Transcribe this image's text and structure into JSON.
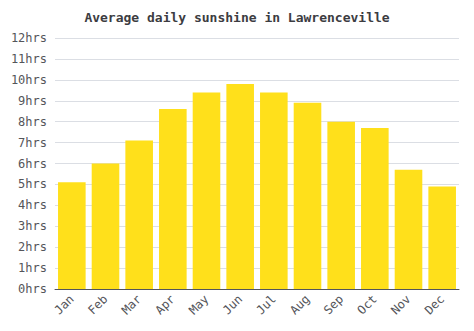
{
  "chart_data": {
    "type": "bar",
    "title": "Average daily sunshine in Lawrenceville",
    "categories": [
      "Jan",
      "Feb",
      "Mar",
      "Apr",
      "May",
      "Jun",
      "Jul",
      "Aug",
      "Sep",
      "Oct",
      "Nov",
      "Dec"
    ],
    "values": [
      5.1,
      6.0,
      7.1,
      8.6,
      9.4,
      9.8,
      9.4,
      8.9,
      8.0,
      7.7,
      5.7,
      4.9
    ],
    "color": "#FFE01B",
    "ylim": [
      0,
      12
    ],
    "yticks": [
      {
        "value": 0,
        "label": "0hrs"
      },
      {
        "value": 1,
        "label": "1hrs"
      },
      {
        "value": 2,
        "label": "2hrs"
      },
      {
        "value": 3,
        "label": "3hrs"
      },
      {
        "value": 4,
        "label": "4hrs"
      },
      {
        "value": 5,
        "label": "5hrs"
      },
      {
        "value": 6,
        "label": "6hrs"
      },
      {
        "value": 7,
        "label": "7hrs"
      },
      {
        "value": 8,
        "label": "8hrs"
      },
      {
        "value": 9,
        "label": "9hrs"
      },
      {
        "value": 10,
        "label": "10hrs"
      },
      {
        "value": 11,
        "label": "11hrs"
      },
      {
        "value": 12,
        "label": "12hrs"
      }
    ],
    "grid": true
  }
}
